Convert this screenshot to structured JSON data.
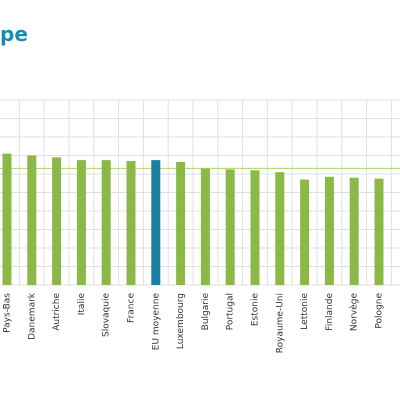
{
  "chart_data": {
    "type": "bar",
    "title_visible": "pe",
    "categories": [
      "Pays-Bas",
      "Danemark",
      "Autriche",
      "Italie",
      "Slovaquie",
      "France",
      "EU moyenne",
      "Luxembourg",
      "Bulgarie",
      "Portugal",
      "Estonie",
      "Royaume-Uni",
      "Lettonie",
      "Finlande",
      "Norvège",
      "Pologne"
    ],
    "values": [
      71,
      70,
      69,
      67.5,
      67.5,
      67,
      67.5,
      66.5,
      63,
      62.5,
      62,
      61,
      57,
      58.5,
      58,
      57.5
    ],
    "highlight_category": "EU moyenne",
    "ylim": [
      0,
      100
    ],
    "grid": true,
    "colors": {
      "bar": "#8bb847",
      "highlight": "#1b7fa1",
      "grid": "#e0e0e0",
      "reference_line": "#b6d97a",
      "title": "#1a8cb0"
    }
  }
}
